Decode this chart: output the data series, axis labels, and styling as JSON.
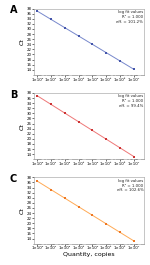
{
  "panels": [
    {
      "label": "A",
      "line_color": "#7788cc",
      "dot_color": "#4455aa",
      "annotation": "log fit values\nR² = 1.000\neff. = 101.2%",
      "y_values": [
        37.0,
        33.8,
        30.5,
        27.2,
        24.0,
        20.7,
        17.5,
        14.2
      ],
      "y_lim": [
        12,
        38
      ],
      "y_ticks": [
        14,
        16,
        18,
        20,
        22,
        24,
        26,
        28,
        30,
        32,
        34,
        36,
        38
      ]
    },
    {
      "label": "B",
      "line_color": "#ee7777",
      "dot_color": "#cc3333",
      "annotation": "log fit values\nR² = 1.000\neff. = 99.4%",
      "y_values": [
        37.0,
        33.5,
        30.0,
        26.5,
        23.5,
        20.0,
        16.5,
        13.0
      ],
      "y_lim": [
        12,
        38
      ],
      "y_ticks": [
        14,
        16,
        18,
        20,
        22,
        24,
        26,
        28,
        30,
        32,
        34,
        36,
        38
      ]
    },
    {
      "label": "C",
      "line_color": "#ffaa55",
      "dot_color": "#ee7722",
      "annotation": "log fit values\nR² = 1.000\neff. = 102.6%",
      "y_values": [
        36.5,
        33.2,
        29.8,
        26.5,
        23.2,
        19.8,
        16.5,
        13.0
      ],
      "y_lim": [
        12,
        38
      ],
      "y_ticks": [
        14,
        16,
        18,
        20,
        22,
        24,
        26,
        28,
        30,
        32,
        34,
        36,
        38
      ]
    }
  ],
  "x_values": [
    5,
    50,
    500,
    5000,
    50000,
    500000,
    5000000,
    50000000
  ],
  "x_tick_labels": [
    "1×10⁰",
    "1×10¹",
    "1×10²",
    "1×10³",
    "1×10⁴",
    "1×10⁵",
    "1×10⁶",
    "1×10⁷"
  ],
  "xlabel": "Quantity, copies",
  "ylabel": "Ct",
  "background_color": "#ffffff"
}
